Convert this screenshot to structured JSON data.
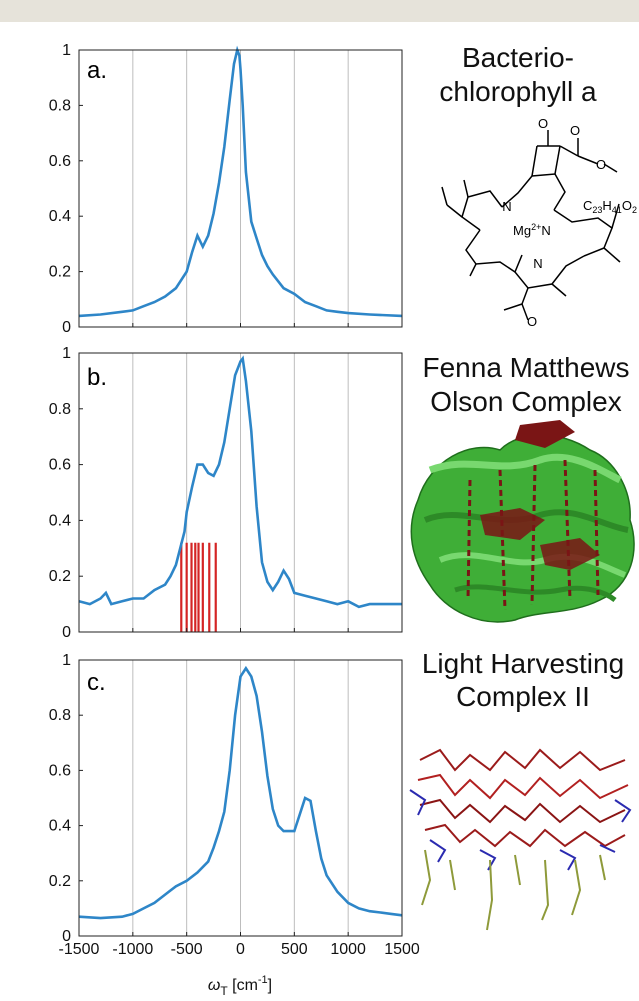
{
  "colors": {
    "curve": "#2e86c8",
    "sticks": "#d42424",
    "grid": "#bdbdbd",
    "protein": "#3db033",
    "pigment": "#7a1515"
  },
  "chart_data": [
    {
      "type": "line",
      "panel_label": "a.",
      "xlim": [
        -1500,
        1500
      ],
      "ylim": [
        0,
        1
      ],
      "xticks": [
        -1500,
        -1000,
        -500,
        0,
        500,
        1000,
        1500
      ],
      "xtick_labels": [
        "-1500",
        "-1000",
        "-500",
        "0",
        "500",
        "1000",
        "1500"
      ],
      "yticks": [
        0,
        0.2,
        0.4,
        0.6,
        0.8,
        1
      ],
      "ytick_labels": [
        "0",
        "0.2",
        "0.4",
        "0.6",
        "0.8",
        "1"
      ],
      "grid_x": true,
      "xlabel": "",
      "x": [
        -1500,
        -1300,
        -1100,
        -1000,
        -900,
        -800,
        -700,
        -600,
        -500,
        -450,
        -400,
        -350,
        -300,
        -250,
        -200,
        -150,
        -100,
        -60,
        -30,
        -10,
        0,
        20,
        50,
        100,
        150,
        200,
        250,
        300,
        400,
        500,
        600,
        700,
        800,
        900,
        1000,
        1200,
        1500
      ],
      "y": [
        0.04,
        0.045,
        0.055,
        0.06,
        0.075,
        0.09,
        0.11,
        0.14,
        0.2,
        0.27,
        0.33,
        0.29,
        0.33,
        0.41,
        0.52,
        0.65,
        0.82,
        0.95,
        1.0,
        0.98,
        0.93,
        0.8,
        0.56,
        0.38,
        0.32,
        0.26,
        0.22,
        0.19,
        0.14,
        0.12,
        0.09,
        0.075,
        0.06,
        0.055,
        0.05,
        0.045,
        0.04
      ],
      "structure_title": [
        "Bacterio-",
        "chlorophyll a"
      ],
      "chem_labels": [
        "O",
        "O",
        "O",
        "N",
        "Mg",
        "2+",
        "N",
        "N",
        "C",
        "23",
        "H",
        "41",
        "O",
        "2",
        "O"
      ]
    },
    {
      "type": "line",
      "panel_label": "b.",
      "xlim": [
        -1500,
        1500
      ],
      "ylim": [
        0,
        1
      ],
      "xticks": [
        -1500,
        -1000,
        -500,
        0,
        500,
        1000,
        1500
      ],
      "yticks": [
        0,
        0.2,
        0.4,
        0.6,
        0.8,
        1
      ],
      "ytick_labels": [
        "0",
        "0.2",
        "0.4",
        "0.6",
        "0.8",
        "1"
      ],
      "grid_x": true,
      "x": [
        -1500,
        -1400,
        -1300,
        -1250,
        -1200,
        -1100,
        -1000,
        -900,
        -800,
        -700,
        -650,
        -600,
        -560,
        -520,
        -500,
        -450,
        -400,
        -350,
        -300,
        -250,
        -200,
        -150,
        -100,
        -50,
        0,
        20,
        50,
        100,
        150,
        200,
        250,
        300,
        350,
        400,
        450,
        500,
        600,
        700,
        800,
        900,
        1000,
        1100,
        1200,
        1300,
        1400,
        1500
      ],
      "y": [
        0.11,
        0.1,
        0.12,
        0.14,
        0.1,
        0.11,
        0.12,
        0.12,
        0.15,
        0.17,
        0.2,
        0.24,
        0.3,
        0.36,
        0.43,
        0.52,
        0.6,
        0.6,
        0.57,
        0.56,
        0.6,
        0.68,
        0.8,
        0.92,
        0.97,
        0.98,
        0.9,
        0.72,
        0.45,
        0.25,
        0.18,
        0.15,
        0.18,
        0.22,
        0.19,
        0.14,
        0.13,
        0.12,
        0.11,
        0.1,
        0.11,
        0.09,
        0.1,
        0.1,
        0.1,
        0.1
      ],
      "sticks": {
        "x": [
          -550,
          -500,
          -455,
          -420,
          -390,
          -350,
          -290,
          -230
        ],
        "height": 0.32
      },
      "structure_title": [
        "Fenna Matthews",
        "Olson Complex"
      ]
    },
    {
      "type": "line",
      "panel_label": "c.",
      "xlim": [
        -1500,
        1500
      ],
      "ylim": [
        0,
        1
      ],
      "xticks": [
        -1500,
        -1000,
        -500,
        0,
        500,
        1000,
        1500
      ],
      "xtick_labels": [
        "-1500",
        "-1000",
        "-500",
        "0",
        "500",
        "1000",
        "1500"
      ],
      "yticks": [
        0,
        0.2,
        0.4,
        0.6,
        0.8,
        1
      ],
      "ytick_labels": [
        "0",
        "0.2",
        "0.4",
        "0.6",
        "0.8",
        "1"
      ],
      "grid_x": true,
      "xlabel_main": "ω",
      "xlabel_sub": "T",
      "xlabel_rest": " [cm",
      "xlabel_sup": "-1",
      "xlabel_end": "]",
      "x": [
        -1500,
        -1300,
        -1100,
        -1000,
        -900,
        -800,
        -700,
        -600,
        -500,
        -400,
        -300,
        -250,
        -200,
        -150,
        -100,
        -50,
        0,
        50,
        100,
        150,
        200,
        250,
        300,
        350,
        400,
        450,
        500,
        550,
        600,
        650,
        700,
        750,
        800,
        900,
        1000,
        1100,
        1200,
        1300,
        1400,
        1500
      ],
      "y": [
        0.07,
        0.065,
        0.07,
        0.08,
        0.1,
        0.12,
        0.15,
        0.18,
        0.2,
        0.23,
        0.27,
        0.32,
        0.38,
        0.45,
        0.6,
        0.8,
        0.94,
        0.97,
        0.94,
        0.87,
        0.74,
        0.58,
        0.46,
        0.4,
        0.38,
        0.38,
        0.38,
        0.44,
        0.5,
        0.49,
        0.38,
        0.28,
        0.22,
        0.16,
        0.12,
        0.1,
        0.09,
        0.085,
        0.08,
        0.075
      ],
      "structure_title": [
        "Light Harvesting",
        "Complex II"
      ]
    }
  ]
}
